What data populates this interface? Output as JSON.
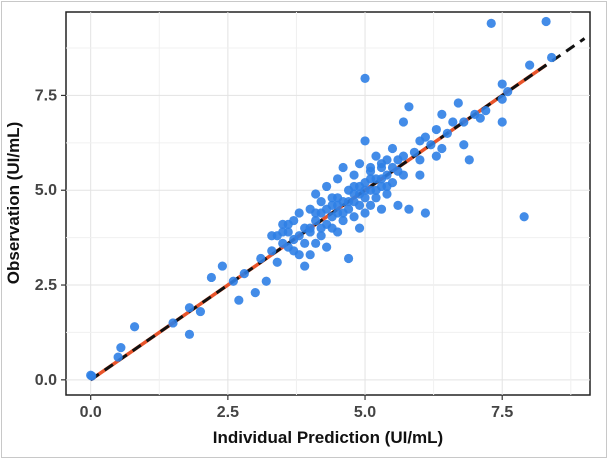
{
  "chart_data": {
    "type": "scatter",
    "xlabel": "Individual Prediction (UI/mL)",
    "ylabel": "Observation (UI/mL)",
    "xlim": [
      -0.45,
      9.1
    ],
    "ylim": [
      -0.4,
      9.7
    ],
    "x_ticks": [
      "0.0",
      "2.5",
      "5.0",
      "7.5"
    ],
    "y_ticks": [
      "0.0",
      "2.5",
      "5.0",
      "7.5"
    ],
    "grid": true,
    "identity_line": {
      "x": [
        0,
        9
      ],
      "y": [
        0,
        9
      ],
      "style": "dashed",
      "color": "#111111"
    },
    "regression_line": {
      "x": [
        0,
        8.3
      ],
      "y": [
        0,
        8.3
      ],
      "color": "#e8542a"
    },
    "point_color": "#2f7fe6",
    "points": [
      [
        0.0,
        0.12
      ],
      [
        0.02,
        0.1
      ],
      [
        0.5,
        0.6
      ],
      [
        0.55,
        0.85
      ],
      [
        0.8,
        1.4
      ],
      [
        1.5,
        1.5
      ],
      [
        1.8,
        1.9
      ],
      [
        1.8,
        1.2
      ],
      [
        2.0,
        1.8
      ],
      [
        2.2,
        2.7
      ],
      [
        2.4,
        3.0
      ],
      [
        2.6,
        2.6
      ],
      [
        2.7,
        2.1
      ],
      [
        2.8,
        2.8
      ],
      [
        3.0,
        2.3
      ],
      [
        3.1,
        3.2
      ],
      [
        3.2,
        2.6
      ],
      [
        3.3,
        3.4
      ],
      [
        3.4,
        3.8
      ],
      [
        3.4,
        3.1
      ],
      [
        3.5,
        3.6
      ],
      [
        3.5,
        4.1
      ],
      [
        3.6,
        3.5
      ],
      [
        3.6,
        3.9
      ],
      [
        3.7,
        4.2
      ],
      [
        3.7,
        3.4
      ],
      [
        3.8,
        3.8
      ],
      [
        3.8,
        4.4
      ],
      [
        3.9,
        3.0
      ],
      [
        3.9,
        3.6
      ],
      [
        3.9,
        4.0
      ],
      [
        4.0,
        4.5
      ],
      [
        4.0,
        3.3
      ],
      [
        4.0,
        3.9
      ],
      [
        4.1,
        4.2
      ],
      [
        4.1,
        3.6
      ],
      [
        4.1,
        4.9
      ],
      [
        4.2,
        4.4
      ],
      [
        4.2,
        3.8
      ],
      [
        4.2,
        4.7
      ],
      [
        4.3,
        4.1
      ],
      [
        4.3,
        3.5
      ],
      [
        4.3,
        5.1
      ],
      [
        4.4,
        4.6
      ],
      [
        4.4,
        4.0
      ],
      [
        4.4,
        4.3
      ],
      [
        4.5,
        4.8
      ],
      [
        4.5,
        4.4
      ],
      [
        4.5,
        3.9
      ],
      [
        4.5,
        5.3
      ],
      [
        4.6,
        4.7
      ],
      [
        4.6,
        4.2
      ],
      [
        4.6,
        5.6
      ],
      [
        4.7,
        5.0
      ],
      [
        4.7,
        4.5
      ],
      [
        4.7,
        3.2
      ],
      [
        4.8,
        4.9
      ],
      [
        4.8,
        4.3
      ],
      [
        4.8,
        5.4
      ],
      [
        4.9,
        5.1
      ],
      [
        4.9,
        4.6
      ],
      [
        4.9,
        4.0
      ],
      [
        4.9,
        5.7
      ],
      [
        5.0,
        5.2
      ],
      [
        5.0,
        4.8
      ],
      [
        5.0,
        4.4
      ],
      [
        5.0,
        6.3
      ],
      [
        5.0,
        7.95
      ],
      [
        5.1,
        5.5
      ],
      [
        5.1,
        5.0
      ],
      [
        5.1,
        4.6
      ],
      [
        5.2,
        5.3
      ],
      [
        5.2,
        4.8
      ],
      [
        5.2,
        5.9
      ],
      [
        5.3,
        5.6
      ],
      [
        5.3,
        5.1
      ],
      [
        5.3,
        4.5
      ],
      [
        5.4,
        5.4
      ],
      [
        5.4,
        5.8
      ],
      [
        5.4,
        4.9
      ],
      [
        5.5,
        5.6
      ],
      [
        5.5,
        6.1
      ],
      [
        5.5,
        5.2
      ],
      [
        5.6,
        5.5
      ],
      [
        5.6,
        4.6
      ],
      [
        5.7,
        6.8
      ],
      [
        5.7,
        5.9
      ],
      [
        5.8,
        7.2
      ],
      [
        5.8,
        4.5
      ],
      [
        5.9,
        6.0
      ],
      [
        6.0,
        6.3
      ],
      [
        6.0,
        5.4
      ],
      [
        6.1,
        4.4
      ],
      [
        6.2,
        6.2
      ],
      [
        6.3,
        6.6
      ],
      [
        6.3,
        5.9
      ],
      [
        6.4,
        7.0
      ],
      [
        6.5,
        6.5
      ],
      [
        6.6,
        6.8
      ],
      [
        6.7,
        7.3
      ],
      [
        6.8,
        6.2
      ],
      [
        6.9,
        5.8
      ],
      [
        7.0,
        7.0
      ],
      [
        7.1,
        6.9
      ],
      [
        7.2,
        7.1
      ],
      [
        7.3,
        9.4
      ],
      [
        7.5,
        7.4
      ],
      [
        7.5,
        6.8
      ],
      [
        7.6,
        7.6
      ],
      [
        8.0,
        8.3
      ],
      [
        7.9,
        4.3
      ],
      [
        8.3,
        9.45
      ],
      [
        8.4,
        8.5
      ],
      [
        3.5,
        3.9
      ],
      [
        3.6,
        4.1
      ],
      [
        3.8,
        3.3
      ],
      [
        4.0,
        4.0
      ],
      [
        4.2,
        4.0
      ],
      [
        4.3,
        4.5
      ],
      [
        4.4,
        4.8
      ],
      [
        4.6,
        4.4
      ],
      [
        4.7,
        4.7
      ],
      [
        4.8,
        5.1
      ],
      [
        4.9,
        4.9
      ],
      [
        5.0,
        5.0
      ],
      [
        5.1,
        5.3
      ],
      [
        5.2,
        5.0
      ],
      [
        5.3,
        5.3
      ],
      [
        5.4,
        5.1
      ],
      [
        5.6,
        5.8
      ],
      [
        6.0,
        5.8
      ],
      [
        6.8,
        6.8
      ],
      [
        7.5,
        7.8
      ],
      [
        3.3,
        3.8
      ],
      [
        3.7,
        3.7
      ],
      [
        4.1,
        4.4
      ],
      [
        4.5,
        4.6
      ],
      [
        4.8,
        4.7
      ],
      [
        5.1,
        5.6
      ],
      [
        5.3,
        5.7
      ],
      [
        5.7,
        5.4
      ],
      [
        6.1,
        6.4
      ],
      [
        6.4,
        6.1
      ]
    ]
  }
}
